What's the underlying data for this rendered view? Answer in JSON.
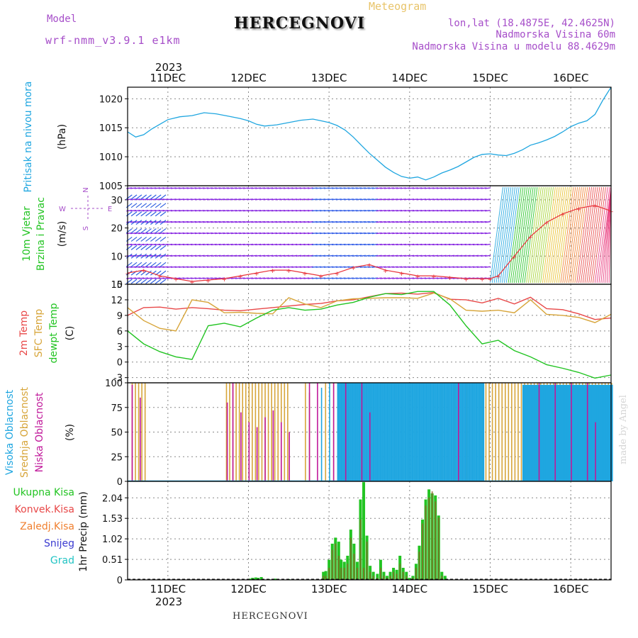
{
  "header": {
    "model_label": "Model",
    "model_name": "wrf-nmm_v3.9.1 e1km",
    "title": "HERCEGNOVI",
    "meteogram": "Meteogram",
    "lonlat": "lon,lat (18.4875E, 42.4625N)",
    "elev": "Nadmorska Visina 60m",
    "elev_model": "Nadmorska Visina u modelu 88.4629m",
    "footer": "HERCEGNOVI",
    "made_by": "made by Angel"
  },
  "colors": {
    "pressure": "#1fa6e0",
    "wind_speed": "#e8323a",
    "temp2m": "#e84848",
    "sfc_temp": "#d7a53a",
    "dewpoint": "#22c422",
    "cloud_high": "#1fa6e0",
    "cloud_mid": "#d7a53a",
    "cloud_low": "#c0189a",
    "precip_total": "#22c422",
    "precip_conv": "#e84848",
    "precip_frozen": "#f08030",
    "precip_snow": "#3a3ad0",
    "precip_grad": "#22c4c4"
  },
  "chart_data": [
    {
      "type": "line",
      "panel": "pressure",
      "ylabel_lines": [
        "Pritisak na nivou mora",
        "(hPa)"
      ],
      "year_top": "2023",
      "top_date_labels": [
        "11DEC",
        "12DEC",
        "13DEC",
        "14DEC",
        "15DEC",
        "16DEC"
      ],
      "x_ticks_days": [
        11,
        12,
        13,
        14,
        15,
        16
      ],
      "xlim": [
        10.5,
        16.5
      ],
      "ylim": [
        1005,
        1022
      ],
      "yticks": [
        1005,
        1010,
        1015,
        1020
      ],
      "series": [
        {
          "x": [
            10.5,
            10.6,
            10.7,
            10.8,
            10.9,
            11.0,
            11.15,
            11.3,
            11.45,
            11.6,
            11.75,
            11.9,
            12.0,
            12.1,
            12.2,
            12.35,
            12.5,
            12.65,
            12.8,
            12.9,
            13.0,
            13.1,
            13.2,
            13.3,
            13.4,
            13.5,
            13.6,
            13.7,
            13.8,
            13.9,
            14.0,
            14.1,
            14.2,
            14.3,
            14.4,
            14.5,
            14.6,
            14.7,
            14.8,
            14.9,
            15.0,
            15.1,
            15.2,
            15.3,
            15.4,
            15.5,
            15.6,
            15.7,
            15.8,
            15.9,
            16.0,
            16.1,
            16.2,
            16.3,
            16.4,
            16.5
          ],
          "values": [
            1014.3,
            1013.4,
            1013.8,
            1014.8,
            1015.6,
            1016.4,
            1016.9,
            1017.1,
            1017.6,
            1017.4,
            1017.0,
            1016.6,
            1016.2,
            1015.6,
            1015.3,
            1015.5,
            1015.9,
            1016.3,
            1016.5,
            1016.2,
            1015.9,
            1015.4,
            1014.6,
            1013.4,
            1012.0,
            1010.6,
            1009.4,
            1008.2,
            1007.3,
            1006.6,
            1006.3,
            1006.5,
            1006.0,
            1006.5,
            1007.2,
            1007.7,
            1008.3,
            1009.1,
            1009.9,
            1010.4,
            1010.5,
            1010.3,
            1010.2,
            1010.6,
            1011.2,
            1012.0,
            1012.4,
            1012.9,
            1013.5,
            1014.3,
            1015.2,
            1015.8,
            1016.2,
            1017.3,
            1019.8,
            1022.0
          ]
        }
      ]
    },
    {
      "type": "line",
      "panel": "wind",
      "ylabel_lines": [
        "10m Vjetar",
        "Brzina i Pravac",
        "(m/s)"
      ],
      "compass_labels": [
        "N",
        "E",
        "S",
        "W"
      ],
      "ylim": [
        0,
        35
      ],
      "yticks": [
        0,
        10,
        20,
        30
      ],
      "series": [
        {
          "name": "speed",
          "x": [
            10.5,
            10.7,
            10.9,
            11.1,
            11.3,
            11.5,
            11.7,
            11.9,
            12.1,
            12.3,
            12.5,
            12.7,
            12.9,
            13.1,
            13.3,
            13.5,
            13.7,
            13.9,
            14.1,
            14.3,
            14.5,
            14.7,
            14.9,
            15.0,
            15.1,
            15.3,
            15.5,
            15.7,
            15.9,
            16.1,
            16.3,
            16.5
          ],
          "values": [
            4,
            5,
            3,
            2,
            1,
            1.5,
            2,
            3,
            4,
            5,
            5,
            4,
            3,
            4,
            6,
            7,
            5,
            4,
            3,
            3,
            2.5,
            2,
            2,
            2,
            3,
            10,
            17,
            22,
            25,
            27,
            28,
            26
          ]
        }
      ]
    },
    {
      "type": "line",
      "panel": "temperature",
      "ylabel_lines": [
        "2m Temp",
        "SFC Temp",
        "dewpt Temp",
        "(C)"
      ],
      "ylim": [
        -4,
        15
      ],
      "yticks": [
        -3,
        0,
        3,
        6,
        9,
        12,
        15
      ],
      "series": [
        {
          "name": "2m Temp",
          "x": [
            10.5,
            10.7,
            10.9,
            11.1,
            11.3,
            11.5,
            11.7,
            11.9,
            12.1,
            12.3,
            12.5,
            12.7,
            12.9,
            13.1,
            13.3,
            13.5,
            13.7,
            13.9,
            14.1,
            14.3,
            14.5,
            14.7,
            14.9,
            15.1,
            15.3,
            15.5,
            15.7,
            15.9,
            16.1,
            16.3,
            16.5
          ],
          "values": [
            9,
            10.5,
            10.6,
            10.2,
            10.5,
            10.3,
            10,
            9.9,
            10.2,
            10.5,
            10.8,
            11.1,
            11.3,
            11.8,
            12,
            12.6,
            13.2,
            13.3,
            13.1,
            13.4,
            12.1,
            12,
            11.4,
            12.3,
            11.2,
            12.5,
            10.3,
            10.1,
            9.3,
            8.2,
            8.5
          ]
        },
        {
          "name": "SFC Temp",
          "x": [
            10.5,
            10.7,
            10.9,
            11.1,
            11.3,
            11.5,
            11.7,
            11.9,
            12.1,
            12.3,
            12.5,
            12.7,
            12.9,
            13.1,
            13.3,
            13.5,
            13.7,
            13.9,
            14.1,
            14.3,
            14.5,
            14.7,
            14.9,
            15.1,
            15.3,
            15.5,
            15.7,
            15.9,
            16.1,
            16.3,
            16.5
          ],
          "values": [
            10.5,
            8,
            6.5,
            6,
            12,
            11.5,
            9.5,
            9.6,
            9.4,
            9.3,
            12.4,
            11.2,
            10.5,
            11.8,
            12.2,
            12.3,
            12.4,
            12.4,
            12.3,
            13.3,
            12.2,
            10,
            9.8,
            10,
            9.5,
            12,
            9.2,
            9,
            8.6,
            7.6,
            9.2
          ]
        },
        {
          "name": "dewpt Temp",
          "x": [
            10.5,
            10.7,
            10.9,
            11.1,
            11.3,
            11.5,
            11.7,
            11.9,
            12.1,
            12.3,
            12.5,
            12.7,
            12.9,
            13.1,
            13.3,
            13.5,
            13.7,
            13.9,
            14.1,
            14.3,
            14.5,
            14.7,
            14.9,
            15.1,
            15.3,
            15.5,
            15.7,
            15.9,
            16.1,
            16.3,
            16.5
          ],
          "values": [
            6,
            3.5,
            2,
            1,
            0.5,
            7,
            7.5,
            6.8,
            8.5,
            10,
            10.5,
            10,
            10.2,
            11,
            11.5,
            12.5,
            13.2,
            13,
            13.6,
            13.6,
            11,
            7,
            3.5,
            4.2,
            2.2,
            1,
            -0.5,
            -1.2,
            -2,
            -3.1,
            -2.5
          ]
        }
      ]
    },
    {
      "type": "bar",
      "panel": "clouds",
      "ylabel_lines": [
        "Visoka Oblacnost",
        "Srednja Oblacnost",
        "Niska Oblacnost",
        "(%)"
      ],
      "ylim": [
        0,
        100
      ],
      "yticks": [
        0,
        25,
        50,
        75,
        100
      ],
      "series": [
        {
          "name": "Srednja Oblacnost",
          "segments": [
            [
              10.55,
              10.72,
              100
            ],
            [
              11.72,
              12.48,
              100
            ],
            [
              14.9,
              16.5,
              100
            ]
          ],
          "spikes": [
            [
              12.7,
              100
            ],
            [
              12.75,
              90
            ],
            [
              12.95,
              100
            ],
            [
              13.05,
              100
            ],
            [
              14.4,
              100
            ],
            [
              14.55,
              100
            ],
            [
              14.7,
              100
            ]
          ]
        },
        {
          "name": "Visoka Oblacnost",
          "segments": [
            [
              13.1,
              14.92,
              100
            ],
            [
              15.4,
              16.5,
              98
            ]
          ],
          "spikes": [
            [
              12.9,
              95
            ],
            [
              13.0,
              100
            ]
          ]
        },
        {
          "name": "Niska Oblacnost",
          "spikes": [
            [
              10.55,
              98
            ],
            [
              10.65,
              85
            ],
            [
              11.73,
              80
            ],
            [
              11.8,
              100
            ],
            [
              11.9,
              70
            ],
            [
              12.0,
              60
            ],
            [
              12.1,
              55
            ],
            [
              12.2,
              65
            ],
            [
              12.3,
              72
            ],
            [
              12.4,
              60
            ],
            [
              12.5,
              50
            ],
            [
              12.75,
              100
            ],
            [
              12.85,
              100
            ],
            [
              13.05,
              100
            ],
            [
              13.2,
              100
            ],
            [
              13.4,
              100
            ],
            [
              13.5,
              70
            ],
            [
              14.6,
              100
            ],
            [
              15.6,
              100
            ],
            [
              15.8,
              100
            ],
            [
              16.0,
              100
            ],
            [
              16.2,
              100
            ],
            [
              16.3,
              60
            ]
          ]
        }
      ]
    },
    {
      "type": "bar",
      "panel": "precip",
      "ylabel_lines": [
        "1hr Precip (mm)"
      ],
      "legend": [
        "Ukupna Kisa",
        "Konvek.Kisa",
        "Zaledj.Kisa",
        "Snijeg",
        "Grad"
      ],
      "bottom_date_labels": [
        "11DEC",
        "12DEC",
        "13DEC",
        "14DEC",
        "15DEC",
        "16DEC"
      ],
      "year_bottom": "2023",
      "ylim": [
        0,
        2.45
      ],
      "yticks": [
        0,
        0.51,
        1.02,
        1.53,
        2.04
      ],
      "ytick_labels": [
        "0",
        "0.51",
        "1.02",
        "1.53",
        "2.04"
      ],
      "x": [
        12.02,
        12.05,
        12.09,
        12.12,
        12.16,
        12.25,
        12.33,
        12.5,
        12.93,
        12.96,
        13.0,
        13.04,
        13.08,
        13.12,
        13.15,
        13.19,
        13.23,
        13.27,
        13.31,
        13.35,
        13.39,
        13.43,
        13.47,
        13.51,
        13.55,
        13.6,
        13.64,
        13.68,
        13.72,
        13.76,
        13.8,
        13.84,
        13.88,
        13.92,
        13.96,
        14.0,
        14.04,
        14.08,
        14.12,
        14.16,
        14.2,
        14.24,
        14.28,
        14.32,
        14.36,
        14.4,
        14.44
      ],
      "total": [
        0.03,
        0.05,
        0.06,
        0.05,
        0.07,
        0.02,
        0.03,
        0.02,
        0.2,
        0.22,
        0.5,
        0.9,
        1.05,
        0.95,
        0.5,
        0.45,
        0.6,
        1.25,
        0.9,
        0.45,
        2.0,
        2.43,
        1.1,
        0.35,
        0.2,
        0.15,
        0.5,
        0.2,
        0.1,
        0.2,
        0.3,
        0.25,
        0.6,
        0.3,
        0.2,
        0.05,
        0.1,
        0.4,
        0.85,
        1.5,
        2.0,
        2.25,
        2.15,
        2.1,
        1.6,
        0.2,
        0.1
      ],
      "convective": [
        0,
        0,
        0,
        0,
        0,
        0,
        0,
        0,
        0.1,
        0.1,
        0.3,
        0.75,
        0.9,
        0.6,
        0.3,
        0.3,
        0.4,
        1.05,
        0.65,
        0.3,
        1.5,
        0.3,
        0.95,
        0.2,
        0.1,
        0.05,
        0.3,
        0.1,
        0.05,
        0.1,
        0.2,
        0.15,
        0.4,
        0.2,
        0.1,
        0,
        0.05,
        0.3,
        0.7,
        1.4,
        1.85,
        2.05,
        2.2,
        1.95,
        1.55,
        0.1,
        0
      ]
    }
  ]
}
